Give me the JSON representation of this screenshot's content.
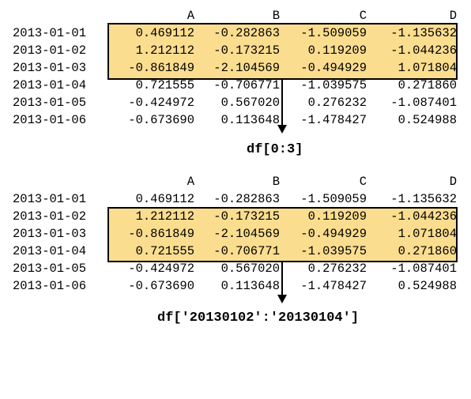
{
  "columns": [
    "A",
    "B",
    "C",
    "D"
  ],
  "table": {
    "index": [
      "2013-01-01",
      "2013-01-02",
      "2013-01-03",
      "2013-01-04",
      "2013-01-05",
      "2013-01-06"
    ],
    "rows": [
      [
        "0.469112",
        "-0.282863",
        "-1.509059",
        "-1.135632"
      ],
      [
        "1.212112",
        "-0.173215",
        "0.119209",
        "-1.044236"
      ],
      [
        "-0.861849",
        "-2.104569",
        "-0.494929",
        "1.071804"
      ],
      [
        "0.721555",
        "-0.706771",
        "-1.039575",
        "0.271860"
      ],
      [
        "-0.424972",
        "0.567020",
        "0.276232",
        "-1.087401"
      ],
      [
        "-0.673690",
        "0.113648",
        "-1.478427",
        "0.524988"
      ]
    ]
  },
  "panels": [
    {
      "caption": "df[0:3]",
      "selected_rows": [
        "2013-01-01",
        "2013-01-02",
        "2013-01-03"
      ]
    },
    {
      "caption": "df['20130102':'20130104']",
      "selected_rows": [
        "2013-01-02",
        "2013-01-03",
        "2013-01-04"
      ]
    }
  ],
  "colors": {
    "highlight": "#fbdd8f",
    "border": "#000000",
    "text": "#000000"
  }
}
